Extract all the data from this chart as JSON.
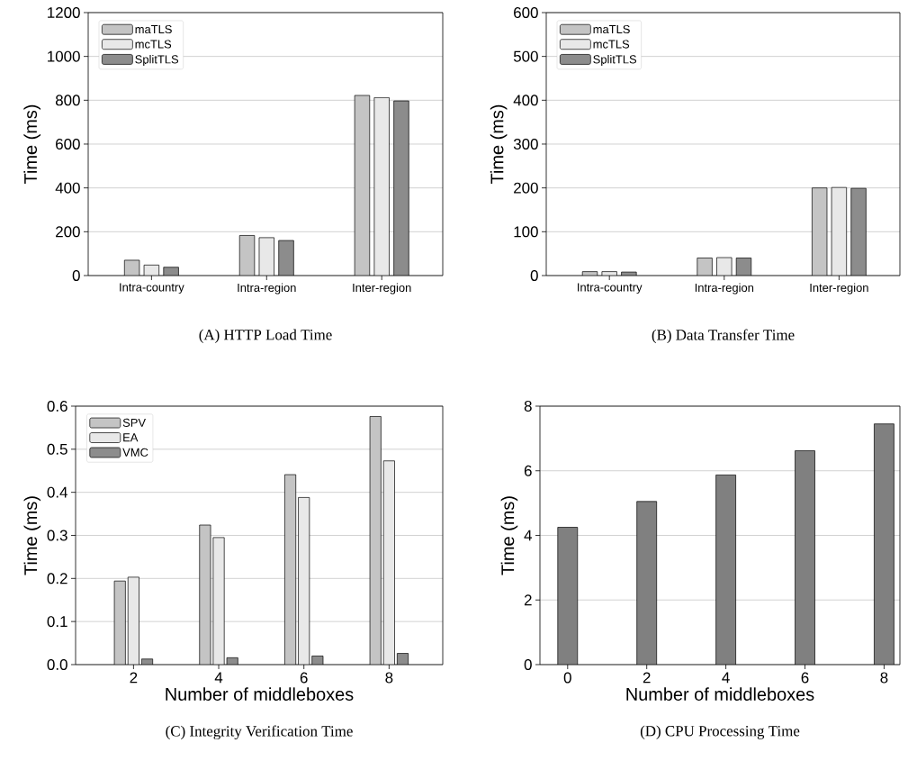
{
  "chart_data": [
    {
      "type": "bar",
      "title": "(A) HTTP Load Time",
      "ylabel": "Time (ms)",
      "categories": [
        "Intra-country",
        "Intra-region",
        "Inter-region"
      ],
      "series": [
        {
          "name": "maTLS",
          "color": "#c4c4c4",
          "values": [
            70,
            183,
            822
          ]
        },
        {
          "name": "mcTLS",
          "color": "#e8e8e8",
          "values": [
            48,
            173,
            812
          ]
        },
        {
          "name": "SplitTLS",
          "color": "#8c8c8c",
          "values": [
            38,
            160,
            797
          ]
        }
      ],
      "ylim": [
        0,
        1200
      ],
      "yticks": [
        0,
        200,
        400,
        600,
        800,
        1000,
        1200
      ],
      "grid": "y",
      "legend": "top left"
    },
    {
      "type": "bar",
      "title": "(B) Data Transfer Time",
      "ylabel": "Time (ms)",
      "categories": [
        "Intra-country",
        "Intra-region",
        "Inter-region"
      ],
      "series": [
        {
          "name": "maTLS",
          "color": "#c4c4c4",
          "values": [
            9,
            40,
            200
          ]
        },
        {
          "name": "mcTLS",
          "color": "#e8e8e8",
          "values": [
            9,
            41,
            201
          ]
        },
        {
          "name": "SplitTLS",
          "color": "#8c8c8c",
          "values": [
            8,
            40,
            199
          ]
        }
      ],
      "ylim": [
        0,
        600
      ],
      "yticks": [
        0,
        100,
        200,
        300,
        400,
        500,
        600
      ],
      "grid": "y",
      "legend": "top left"
    },
    {
      "type": "bar",
      "title": "(C) Integrity Verification Time",
      "xlabel": "Number of middleboxes",
      "ylabel": "Time (ms)",
      "categories": [
        "2",
        "4",
        "6",
        "8"
      ],
      "series": [
        {
          "name": "SPV",
          "color": "#c4c4c4",
          "values": [
            0.194,
            0.324,
            0.441,
            0.576
          ]
        },
        {
          "name": "EA",
          "color": "#e8e8e8",
          "values": [
            0.203,
            0.295,
            0.388,
            0.473
          ]
        },
        {
          "name": "VMC",
          "color": "#8c8c8c",
          "values": [
            0.013,
            0.016,
            0.02,
            0.026
          ]
        }
      ],
      "ylim": [
        0,
        0.6
      ],
      "yticks": [
        {
          "value": 0,
          "label": "0.0"
        },
        0.1,
        0.2,
        0.3,
        0.4,
        0.5,
        0.6
      ],
      "grid": "y",
      "legend": "top left"
    },
    {
      "type": "bar",
      "title": "(D) CPU Processing Time",
      "xlabel": "Number of middleboxes",
      "ylabel": "Time (ms)",
      "x": [
        0,
        2,
        4,
        6,
        8
      ],
      "series": [
        {
          "color": "#808080",
          "values": [
            4.25,
            5.05,
            5.87,
            6.62,
            7.45
          ]
        }
      ],
      "xlim": [
        -0.7,
        8.4
      ],
      "xticks": [
        0,
        2,
        4,
        6,
        8
      ],
      "ylim": [
        0,
        8
      ],
      "yticks": [
        0,
        2,
        4,
        6,
        8
      ],
      "grid": "y"
    }
  ]
}
